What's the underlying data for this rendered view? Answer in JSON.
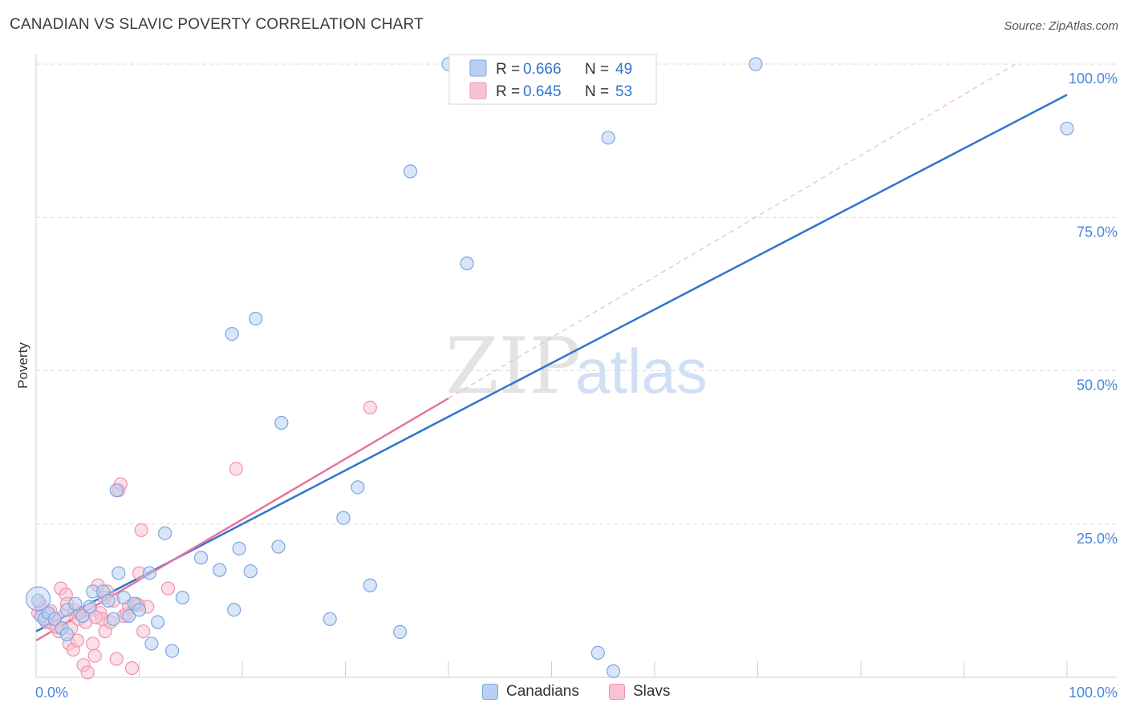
{
  "header": {
    "title": "CANADIAN VS SLAVIC POVERTY CORRELATION CHART",
    "source": "Source: ZipAtlas.com"
  },
  "watermark": {
    "zip": "ZIP",
    "atlas": "atlas"
  },
  "legend_top": [
    {
      "r_label": "R =",
      "r_value": "0.666",
      "n_label": "N =",
      "n_value": "49"
    },
    {
      "r_label": "R =",
      "r_value": "0.645",
      "n_label": "N =",
      "n_value": "53"
    }
  ],
  "legend_bottom": [
    {
      "label": "Canadians"
    },
    {
      "label": "Slavs"
    }
  ],
  "colors": {
    "canadians_fill": "#b8d1f2",
    "canadians_stroke": "#7aa6e0",
    "canadians_line": "#2f74d0",
    "slavs_fill": "#f7c3d3",
    "slavs_stroke": "#ee93b0",
    "slavs_line": "#e8749b",
    "tick_text": "#4a86d9",
    "grid": "#dcdcdc"
  },
  "chart_data": {
    "type": "scatter",
    "title": "CANADIAN VS SLAVIC POVERTY CORRELATION CHART",
    "xlabel": "",
    "ylabel": "Poverty",
    "xlim": [
      0,
      100
    ],
    "ylim": [
      0,
      100
    ],
    "x_tick_labels": [
      "0.0%",
      "100.0%"
    ],
    "y_ticks": [
      25,
      50,
      75,
      100
    ],
    "y_tick_labels": [
      "25.0%",
      "50.0%",
      "75.0%",
      "100.0%"
    ],
    "grid": true,
    "legend_position": "top-center",
    "series": [
      {
        "name": "Canadians",
        "r": 0.666,
        "n": 49,
        "trend": {
          "x0": 0,
          "y0": 7.5,
          "x1": 100,
          "y1": 95.0
        },
        "points": [
          [
            0.2,
            12.5
          ],
          [
            0.5,
            10.0
          ],
          [
            0.8,
            9.5
          ],
          [
            1.2,
            10.5
          ],
          [
            1.8,
            9.5
          ],
          [
            2.5,
            8.0
          ],
          [
            3.0,
            11.0
          ],
          [
            3.8,
            12.0
          ],
          [
            4.5,
            10.0
          ],
          [
            5.2,
            11.5
          ],
          [
            5.5,
            14.0
          ],
          [
            6.5,
            14.0
          ],
          [
            7.0,
            12.5
          ],
          [
            7.5,
            9.5
          ],
          [
            8.0,
            17.0
          ],
          [
            8.5,
            13.0
          ],
          [
            9.0,
            10.0
          ],
          [
            9.5,
            12.0
          ],
          [
            10.0,
            11.0
          ],
          [
            11.0,
            17.0
          ],
          [
            11.2,
            5.5
          ],
          [
            11.8,
            9.0
          ],
          [
            12.5,
            23.5
          ],
          [
            13.2,
            4.3
          ],
          [
            14.2,
            13.0
          ],
          [
            16.0,
            19.5
          ],
          [
            17.8,
            17.5
          ],
          [
            19.0,
            56.0
          ],
          [
            19.2,
            11.0
          ],
          [
            19.7,
            21.0
          ],
          [
            20.8,
            17.3
          ],
          [
            21.3,
            58.5
          ],
          [
            23.5,
            21.3
          ],
          [
            23.8,
            41.5
          ],
          [
            28.5,
            9.5
          ],
          [
            29.8,
            26.0
          ],
          [
            31.2,
            31.0
          ],
          [
            32.4,
            15.0
          ],
          [
            35.3,
            7.4
          ],
          [
            36.3,
            82.5
          ],
          [
            40.0,
            100.0
          ],
          [
            41.8,
            67.5
          ],
          [
            54.5,
            4.0
          ],
          [
            55.5,
            88.0
          ],
          [
            56.0,
            1.0
          ],
          [
            69.8,
            100.0
          ],
          [
            100.0,
            89.5
          ],
          [
            7.8,
            30.5
          ],
          [
            3.0,
            7.0
          ]
        ]
      },
      {
        "name": "Slavs",
        "r": 0.645,
        "n": 53,
        "trend": {
          "x0": 0,
          "y0": 6.0,
          "x1": 40,
          "y1": 45.5
        },
        "trend_extension": {
          "x0": 40,
          "y0": 45.5,
          "x1": 95,
          "y1": 100.0
        },
        "points": [
          [
            0.2,
            10.5
          ],
          [
            0.6,
            11.0
          ],
          [
            0.9,
            9.8
          ],
          [
            1.2,
            10.2
          ],
          [
            1.5,
            8.8
          ],
          [
            1.8,
            9.5
          ],
          [
            2.2,
            7.5
          ],
          [
            2.4,
            14.5
          ],
          [
            2.7,
            10.0
          ],
          [
            2.9,
            13.5
          ],
          [
            3.2,
            5.5
          ],
          [
            3.4,
            8.0
          ],
          [
            3.6,
            4.5
          ],
          [
            3.7,
            11.0
          ],
          [
            4.1,
            9.5
          ],
          [
            4.3,
            10.5
          ],
          [
            4.6,
            2.0
          ],
          [
            4.8,
            9.0
          ],
          [
            5.0,
            0.8
          ],
          [
            5.3,
            11.0
          ],
          [
            5.5,
            5.5
          ],
          [
            5.7,
            3.5
          ],
          [
            6.0,
            15.0
          ],
          [
            6.2,
            10.5
          ],
          [
            6.4,
            9.5
          ],
          [
            6.7,
            7.5
          ],
          [
            6.9,
            14.0
          ],
          [
            7.2,
            9.0
          ],
          [
            7.5,
            12.5
          ],
          [
            7.8,
            3.0
          ],
          [
            8.0,
            30.5
          ],
          [
            8.2,
            31.5
          ],
          [
            8.5,
            10.0
          ],
          [
            9.0,
            11.5
          ],
          [
            9.3,
            1.5
          ],
          [
            9.7,
            12.0
          ],
          [
            10.0,
            17.0
          ],
          [
            10.2,
            24.0
          ],
          [
            10.4,
            7.5
          ],
          [
            10.8,
            11.5
          ],
          [
            12.8,
            14.5
          ],
          [
            19.4,
            34.0
          ],
          [
            32.4,
            44.0
          ],
          [
            1.0,
            9.0
          ],
          [
            1.4,
            10.8
          ],
          [
            2.0,
            8.2
          ],
          [
            3.0,
            12.0
          ],
          [
            4.0,
            6.0
          ],
          [
            5.8,
            9.8
          ],
          [
            6.6,
            13.0
          ],
          [
            8.8,
            10.3
          ],
          [
            9.9,
            11.8
          ],
          [
            0.4,
            12.0
          ]
        ]
      }
    ]
  }
}
